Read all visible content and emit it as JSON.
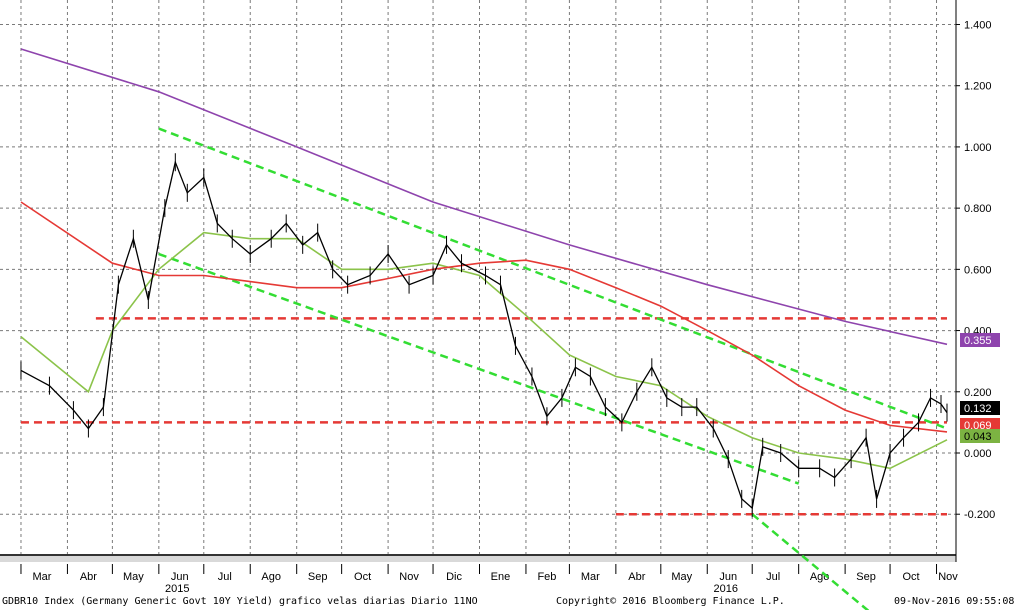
{
  "chart_data": {
    "type": "candlestick",
    "title": "",
    "xlabel": "",
    "ylabel": "",
    "ylim": [
      -0.33,
      1.48
    ],
    "y_ticks": [
      "1.400",
      "1.200",
      "1.000",
      "0.800",
      "0.600",
      "0.400",
      "0.200",
      "0.000",
      "-0.200"
    ],
    "month_labels": [
      "Mar",
      "Abr",
      "May",
      "Jun",
      "Jul",
      "Ago",
      "Sep",
      "Oct",
      "Nov",
      "Dic",
      "Ene",
      "Feb",
      "Mar",
      "Abr",
      "May",
      "Jun",
      "Jul",
      "Ago",
      "Sep",
      "Oct",
      "Nov"
    ],
    "year_labels": [
      "2015",
      "2016"
    ],
    "grid": true,
    "price_series": {
      "name": "GDBR10 Index",
      "x": [
        "2015-03-01",
        "2015-03-20",
        "2015-04-05",
        "2015-04-15",
        "2015-04-25",
        "2015-05-05",
        "2015-05-15",
        "2015-05-25",
        "2015-06-05",
        "2015-06-12",
        "2015-06-20",
        "2015-07-01",
        "2015-07-10",
        "2015-07-20",
        "2015-08-01",
        "2015-08-15",
        "2015-08-25",
        "2015-09-05",
        "2015-09-15",
        "2015-09-25",
        "2015-10-05",
        "2015-10-20",
        "2015-11-01",
        "2015-11-15",
        "2015-12-01",
        "2015-12-10",
        "2015-12-20",
        "2016-01-05",
        "2016-01-15",
        "2016-01-25",
        "2016-02-05",
        "2016-02-15",
        "2016-02-25",
        "2016-03-05",
        "2016-03-15",
        "2016-03-25",
        "2016-04-05",
        "2016-04-15",
        "2016-04-25",
        "2016-05-05",
        "2016-05-15",
        "2016-05-25",
        "2016-06-05",
        "2016-06-15",
        "2016-06-24",
        "2016-07-01",
        "2016-07-08",
        "2016-07-20",
        "2016-08-01",
        "2016-08-15",
        "2016-08-25",
        "2016-09-05",
        "2016-09-15",
        "2016-09-22",
        "2016-10-01",
        "2016-10-10",
        "2016-10-20",
        "2016-10-28",
        "2016-11-04",
        "2016-11-08"
      ],
      "y": [
        0.27,
        0.22,
        0.14,
        0.08,
        0.15,
        0.55,
        0.7,
        0.5,
        0.8,
        0.95,
        0.85,
        0.9,
        0.75,
        0.7,
        0.65,
        0.7,
        0.75,
        0.68,
        0.72,
        0.6,
        0.55,
        0.58,
        0.65,
        0.55,
        0.58,
        0.68,
        0.62,
        0.58,
        0.55,
        0.35,
        0.25,
        0.12,
        0.18,
        0.28,
        0.25,
        0.15,
        0.1,
        0.2,
        0.28,
        0.18,
        0.15,
        0.15,
        0.08,
        -0.02,
        -0.15,
        -0.18,
        0.02,
        0.0,
        -0.05,
        -0.05,
        -0.08,
        -0.02,
        0.05,
        -0.15,
        0.0,
        0.05,
        0.1,
        0.18,
        0.16,
        0.132
      ]
    },
    "moving_averages": [
      {
        "name": "",
        "color": "#8bc34a",
        "x": [
          "2015-03-01",
          "2015-04-15",
          "2015-05-01",
          "2015-06-01",
          "2015-07-01",
          "2015-08-01",
          "2015-09-01",
          "2015-10-01",
          "2015-11-01",
          "2015-12-01",
          "2016-01-01",
          "2016-02-01",
          "2016-03-01",
          "2016-04-01",
          "2016-05-01",
          "2016-06-01",
          "2016-07-01",
          "2016-08-01",
          "2016-09-01",
          "2016-10-01",
          "2016-11-08"
        ],
        "y": [
          0.38,
          0.2,
          0.4,
          0.6,
          0.72,
          0.7,
          0.7,
          0.6,
          0.6,
          0.62,
          0.58,
          0.45,
          0.32,
          0.25,
          0.22,
          0.12,
          0.05,
          0.0,
          -0.02,
          -0.05,
          0.043
        ]
      },
      {
        "name": "",
        "color": "#e53935",
        "x": [
          "2015-03-01",
          "2015-05-01",
          "2015-06-01",
          "2015-07-01",
          "2015-08-01",
          "2015-09-01",
          "2015-10-01",
          "2015-11-01",
          "2015-12-01",
          "2016-01-01",
          "2016-02-01",
          "2016-03-01",
          "2016-04-01",
          "2016-05-01",
          "2016-06-01",
          "2016-07-01",
          "2016-08-01",
          "2016-09-01",
          "2016-10-01",
          "2016-11-08"
        ],
        "y": [
          0.82,
          0.62,
          0.58,
          0.58,
          0.56,
          0.54,
          0.54,
          0.57,
          0.6,
          0.62,
          0.63,
          0.6,
          0.54,
          0.48,
          0.4,
          0.32,
          0.22,
          0.14,
          0.09,
          0.069
        ]
      },
      {
        "name": "",
        "color": "#8e44ad",
        "x": [
          "2015-03-01",
          "2015-06-01",
          "2015-09-01",
          "2015-12-01",
          "2016-03-01",
          "2016-06-01",
          "2016-09-01",
          "2016-11-08"
        ],
        "y": [
          1.32,
          1.18,
          1.0,
          0.82,
          0.68,
          0.55,
          0.43,
          0.355
        ]
      }
    ],
    "annotations": {
      "channel_lines": [
        {
          "x": [
            "2015-06-01",
            "2016-11-08"
          ],
          "y": [
            1.06,
            0.08
          ]
        },
        {
          "x": [
            "2015-06-01",
            "2016-08-01"
          ],
          "y": [
            0.65,
            -0.1
          ]
        },
        {
          "x": [
            "2016-07-01",
            "2016-09-25"
          ],
          "y": [
            -0.2,
            -0.55
          ]
        }
      ],
      "horizontal_levels": [
        {
          "y": 0.44,
          "x_start": "2015-04-20",
          "x_end": "2016-11-08"
        },
        {
          "y": 0.1,
          "x_start": "2015-03-01",
          "x_end": "2016-11-08"
        },
        {
          "y": -0.2,
          "x_start": "2016-04-01",
          "x_end": "2016-11-08"
        }
      ]
    },
    "value_tags": [
      {
        "label": "0.355",
        "value": 0.355,
        "bg": "#8e44ad",
        "fg": "#ffffff"
      },
      {
        "label": "0.132",
        "value": 0.132,
        "bg": "#000000",
        "fg": "#ffffff"
      },
      {
        "label": "0.069",
        "value": 0.069,
        "bg": "#e53935",
        "fg": "#ffffff"
      },
      {
        "label": "0.043",
        "value": 0.043,
        "bg": "#7cb342",
        "fg": "#000000"
      }
    ]
  },
  "footer": {
    "left": "GDBR10 Index (Germany Generic Govt 10Y Yield) grafico velas diarias  Diario 11NO",
    "center": "Copyright© 2016 Bloomberg Finance L.P.",
    "right": "09-Nov-2016 09:55:08"
  }
}
